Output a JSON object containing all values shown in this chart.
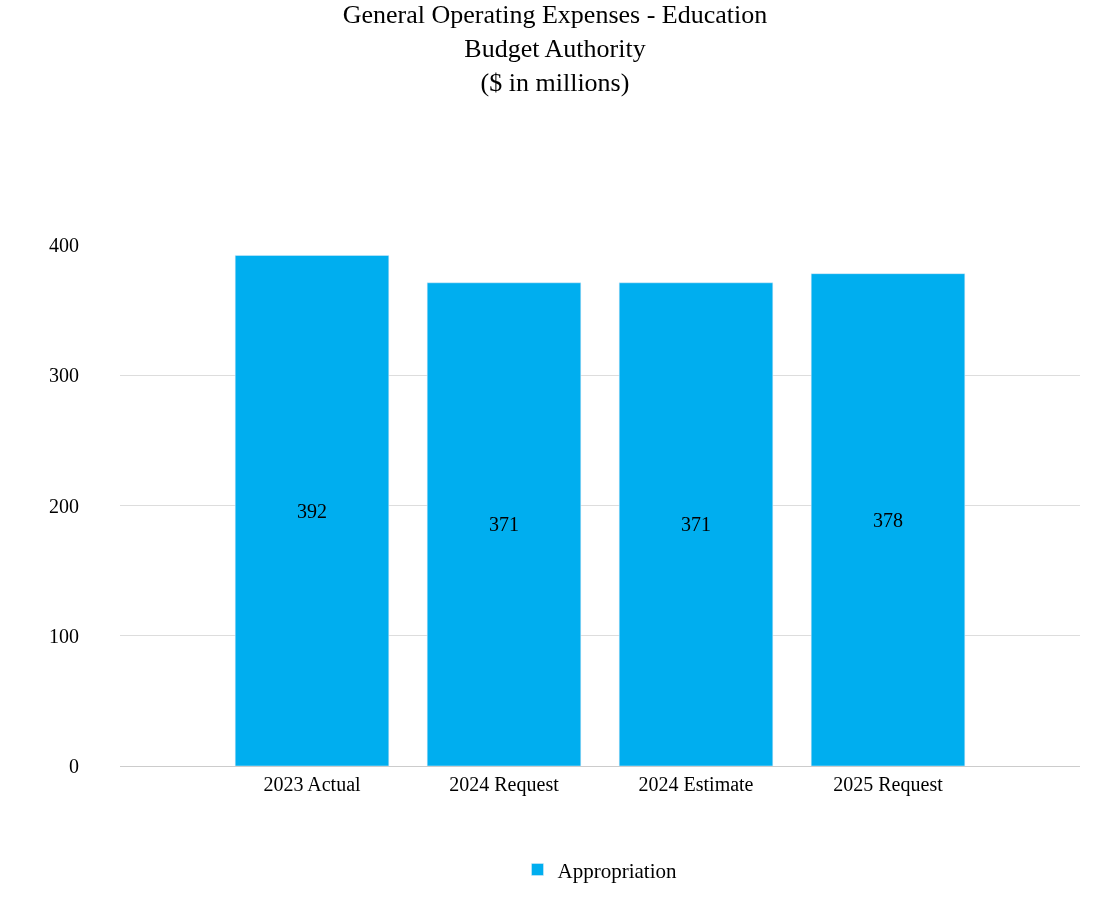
{
  "chart_data": {
    "type": "bar",
    "title": "General Operating Expenses - Education\nBudget Authority\n($ in millions)",
    "categories": [
      "2023 Actual",
      "2024 Request",
      "2024 Estimate",
      "2025 Request"
    ],
    "series": [
      {
        "name": "Appropriation",
        "color": "#00aeef",
        "values": [
          392,
          371,
          371,
          378
        ]
      }
    ],
    "ylim": [
      0,
      400
    ],
    "yticks": [
      0,
      100,
      200,
      300,
      400
    ],
    "grid": "y",
    "legend": "bottom",
    "data_labels": true
  }
}
